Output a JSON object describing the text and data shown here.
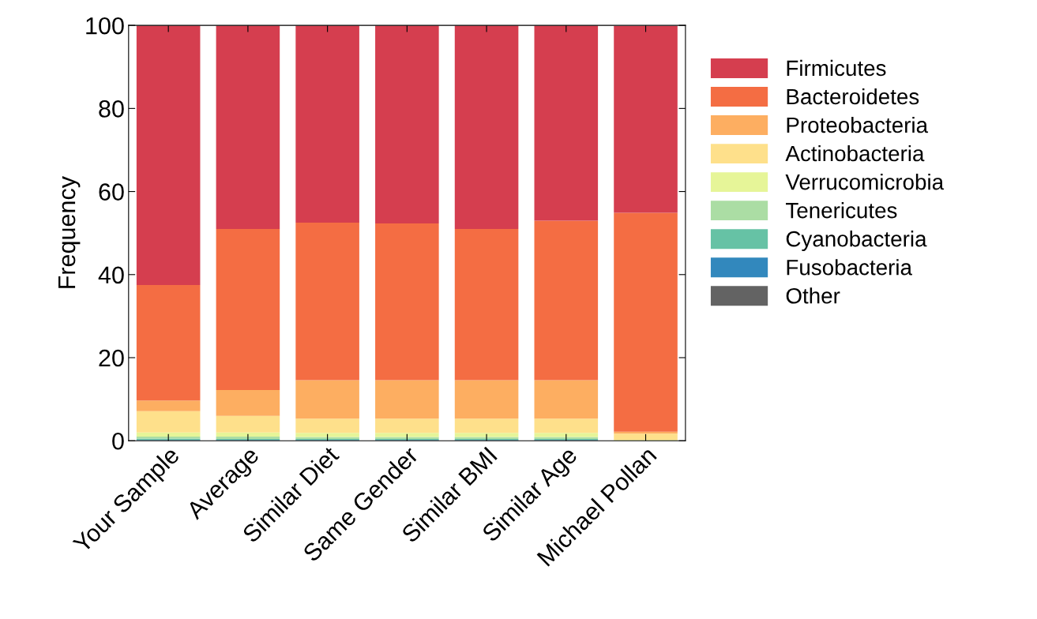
{
  "chart_data": {
    "type": "bar",
    "stacked": true,
    "ylabel": "Frequency",
    "ylim": [
      0,
      100
    ],
    "yticks": [
      0,
      20,
      40,
      60,
      80,
      100
    ],
    "grid": false,
    "legend": "right",
    "categories": [
      "Your Sample",
      "Average",
      "Similar Diet",
      "Same Gender",
      "Similar BMI",
      "Similar Age",
      "Michael Pollan"
    ],
    "series": [
      {
        "name": "Other",
        "color": "#636363",
        "values": [
          0.1,
          0.1,
          0.1,
          0.1,
          0.1,
          0.1,
          0
        ]
      },
      {
        "name": "Fusobacteria",
        "color": "#3288bd",
        "values": [
          0.1,
          0.1,
          0.1,
          0.1,
          0.1,
          0.1,
          0
        ]
      },
      {
        "name": "Cyanobacteria",
        "color": "#66c2a5",
        "values": [
          0.3,
          0.2,
          0.2,
          0.2,
          0.2,
          0.2,
          0
        ]
      },
      {
        "name": "Tenericutes",
        "color": "#abdda4",
        "values": [
          0.5,
          0.6,
          0.5,
          0.5,
          0.5,
          0.5,
          null
        ]
      },
      {
        "name": "Verrucomicrobia",
        "color": "#e6f598",
        "values": [
          1.0,
          1.0,
          1.0,
          1.0,
          1.0,
          1.0,
          0.2
        ]
      },
      {
        "name": "Actinobacteria",
        "color": "#fee08b",
        "values": [
          5.1,
          4.0,
          3.4,
          3.4,
          3.4,
          3.4,
          1.5
        ]
      },
      {
        "name": "Proteobacteria",
        "color": "#fdae61",
        "values": [
          2.6,
          6.2,
          9.3,
          9.3,
          9.3,
          9.3,
          0.5
        ]
      },
      {
        "name": "Bacteroidetes",
        "color": "#f46d43",
        "values": [
          27.8,
          38.8,
          37.9,
          37.7,
          36.4,
          38.4,
          52.7
        ]
      },
      {
        "name": "Firmicutes",
        "color": "#d53e4f",
        "values": [
          62.5,
          49.0,
          47.5,
          47.7,
          49.0,
          47.0,
          45.0
        ]
      }
    ]
  }
}
